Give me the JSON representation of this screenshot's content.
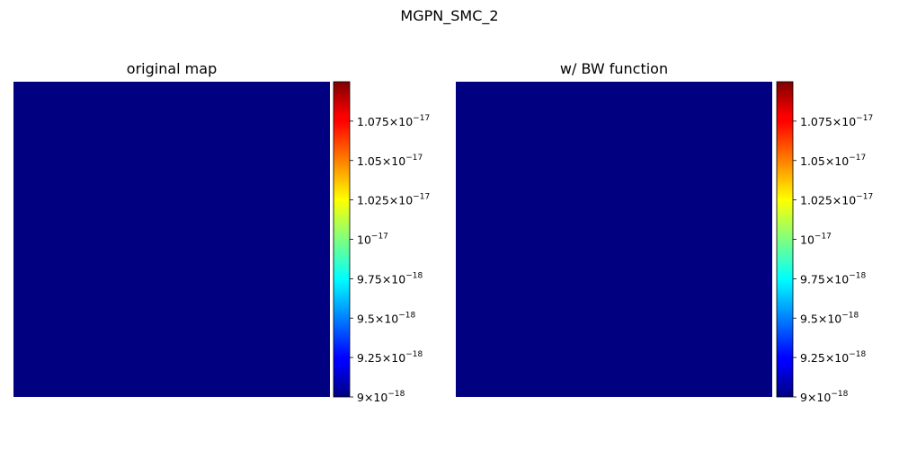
{
  "figure": {
    "suptitle": "MGPN_SMC_2"
  },
  "chart_data": [
    {
      "type": "heatmap",
      "title": "original map",
      "colormap": "jet",
      "fill_color": "#000080",
      "axes_visible": false,
      "grid": false,
      "colorbar": {
        "range": [
          9e-18,
          1.1e-17
        ],
        "ticks": [
          {
            "value": 9e-18,
            "mantissa": "9",
            "exponent": "-18"
          },
          {
            "value": 9.25e-18,
            "mantissa": "9.25",
            "exponent": "-18"
          },
          {
            "value": 9.5e-18,
            "mantissa": "9.5",
            "exponent": "-18"
          },
          {
            "value": 9.75e-18,
            "mantissa": "9.75",
            "exponent": "-18"
          },
          {
            "value": 1e-17,
            "mantissa": "",
            "exponent": "-17"
          },
          {
            "value": 1.025e-17,
            "mantissa": "1.025",
            "exponent": "-17"
          },
          {
            "value": 1.05e-17,
            "mantissa": "1.05",
            "exponent": "-17"
          },
          {
            "value": 1.075e-17,
            "mantissa": "1.075",
            "exponent": "-17"
          }
        ]
      }
    },
    {
      "type": "heatmap",
      "title": "w/ BW function",
      "colormap": "jet",
      "fill_color": "#000080",
      "axes_visible": false,
      "grid": false,
      "colorbar": {
        "range": [
          9e-18,
          1.1e-17
        ],
        "ticks": [
          {
            "value": 9e-18,
            "mantissa": "9",
            "exponent": "-18"
          },
          {
            "value": 9.25e-18,
            "mantissa": "9.25",
            "exponent": "-18"
          },
          {
            "value": 9.5e-18,
            "mantissa": "9.5",
            "exponent": "-18"
          },
          {
            "value": 9.75e-18,
            "mantissa": "9.75",
            "exponent": "-18"
          },
          {
            "value": 1e-17,
            "mantissa": "",
            "exponent": "-17"
          },
          {
            "value": 1.025e-17,
            "mantissa": "1.025",
            "exponent": "-17"
          },
          {
            "value": 1.05e-17,
            "mantissa": "1.05",
            "exponent": "-17"
          },
          {
            "value": 1.075e-17,
            "mantissa": "1.075",
            "exponent": "-17"
          }
        ]
      }
    }
  ]
}
